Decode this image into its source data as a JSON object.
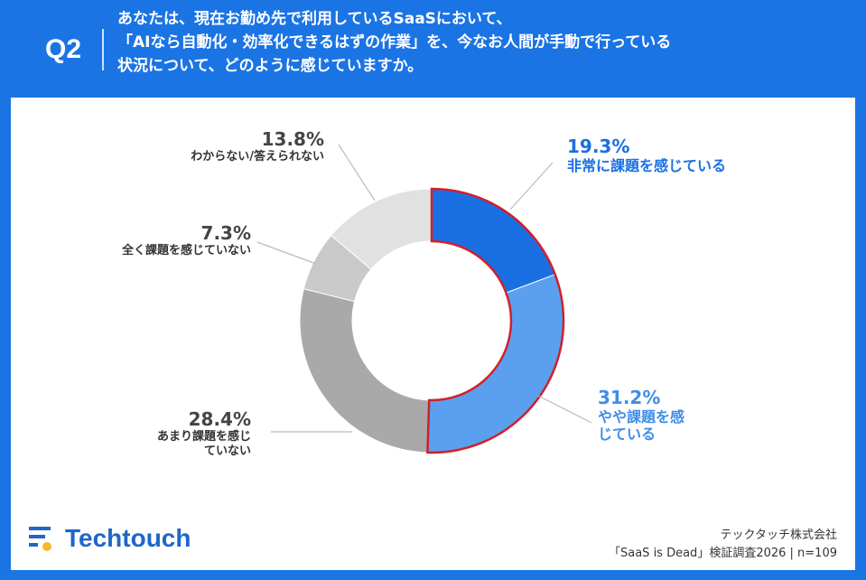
{
  "header": {
    "q": "Q2",
    "question": "あなたは、現在お勤め先で利用しているSaaSにおいて、\n「AIなら自動化・効率化できるはずの作業」を、今なお人間が手動で行っている\n状況について、どのように感じていますか。"
  },
  "chart_data": {
    "type": "pie",
    "donut": true,
    "start": "top, clockwise",
    "slices": [
      {
        "label": "非常に課題を感じている",
        "value": 19.3,
        "value_label": "19.3%",
        "color": "#1a6fe3"
      },
      {
        "label": "やや課題を感じている",
        "value": 31.2,
        "value_label": "31.2%",
        "color": "#5aa0ef"
      },
      {
        "label": "あまり課題を感じていない",
        "value": 28.4,
        "value_label": "28.4%",
        "color": "#a9a9a9"
      },
      {
        "label": "全く課題を感じていない",
        "value": 7.3,
        "value_label": "7.3%",
        "color": "#c9c9c9"
      },
      {
        "label": "わからない/答えられない",
        "value": 13.8,
        "value_label": "13.8%",
        "color": "#e1e1e1"
      }
    ],
    "highlight_color": "#d0202a"
  },
  "footer": {
    "brand": "Techtouch",
    "company": "テックタッチ株式会社",
    "survey": "「SaaS is Dead」検証調査2026 | n=109"
  }
}
